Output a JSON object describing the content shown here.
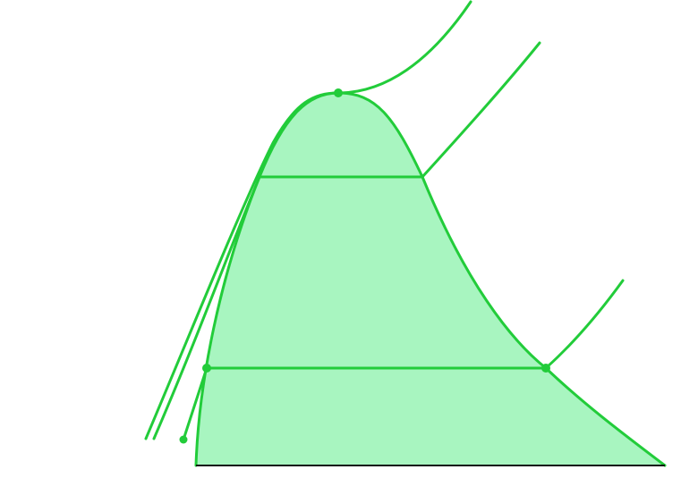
{
  "diagram": {
    "colors": {
      "background": "#ffffff",
      "dome_fill": "#a8f5c0",
      "line": "#22cc3a",
      "point": "#22cc3a",
      "baseline": "#111111"
    },
    "elements": {
      "dome": "saturation-dome",
      "isobars": [
        "upper-isobar",
        "middle-isobar",
        "lower-isobar"
      ],
      "tie_lines": [
        "upper-tie-line",
        "lower-tie-line"
      ],
      "points": [
        "critical-point",
        "saturated-liquid-point",
        "saturated-vapor-point",
        "subcooled-point"
      ]
    }
  }
}
